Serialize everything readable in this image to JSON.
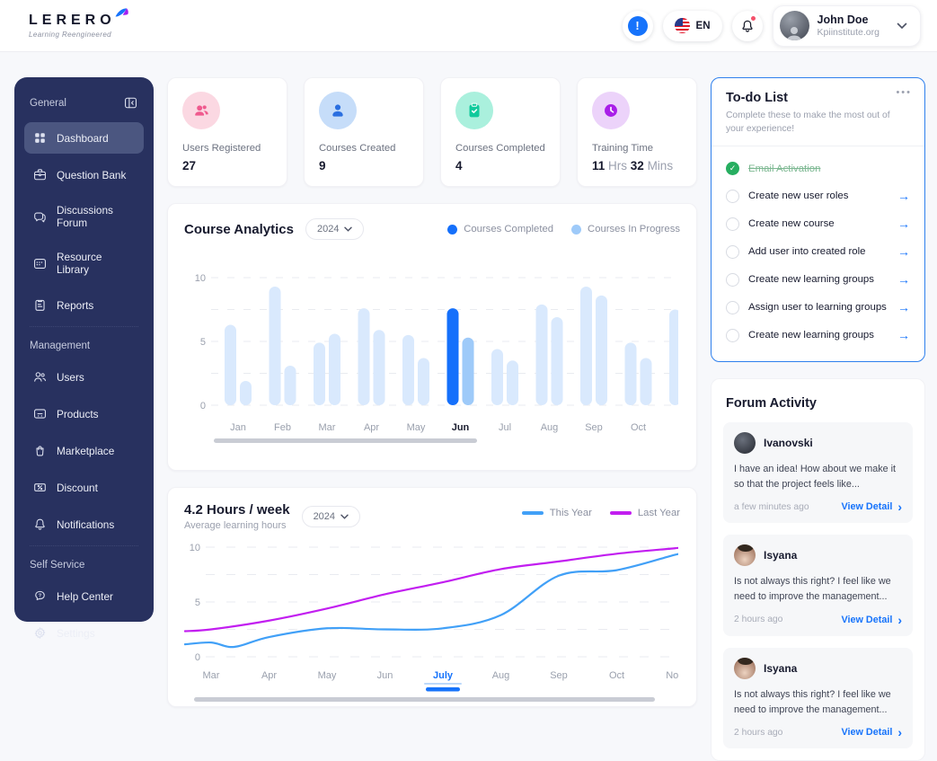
{
  "header": {
    "logo": {
      "text": "LERERO",
      "tagline": "Learning Reengineered"
    },
    "language": "EN",
    "user": {
      "name": "John Doe",
      "org": "Kpiinstitute.org"
    }
  },
  "sidebar": {
    "sections": [
      {
        "label": "General",
        "items": [
          {
            "icon": "dashboard",
            "label": "Dashboard",
            "active": true
          },
          {
            "icon": "question-bank",
            "label": "Question Bank"
          },
          {
            "icon": "discussions-forum",
            "label": "Discussions Forum"
          },
          {
            "icon": "resource-library",
            "label": "Resource Library"
          },
          {
            "icon": "reports",
            "label": "Reports"
          }
        ]
      },
      {
        "label": "Management",
        "items": [
          {
            "icon": "users",
            "label": "Users"
          },
          {
            "icon": "products",
            "label": "Products"
          },
          {
            "icon": "marketplace",
            "label": "Marketplace"
          },
          {
            "icon": "discount",
            "label": "Discount"
          },
          {
            "icon": "notifications",
            "label": "Notifications"
          }
        ]
      },
      {
        "label": "Self Service",
        "items": [
          {
            "icon": "help-center",
            "label": "Help Center"
          },
          {
            "icon": "settings",
            "label": "Settings"
          }
        ]
      }
    ]
  },
  "stats": [
    {
      "icon": "users-group",
      "circle_bg": "#fbd8e2",
      "icon_color": "#ef5a8e",
      "label": "Users Registered",
      "value_parts": [
        {
          "t": "27",
          "b": true
        }
      ]
    },
    {
      "icon": "person",
      "circle_bg": "#c6ddf9",
      "icon_color": "#2b6fe0",
      "label": "Courses Created",
      "value_parts": [
        {
          "t": "9",
          "b": true
        }
      ]
    },
    {
      "icon": "clipboard-check",
      "circle_bg": "#aaf0dd",
      "icon_color": "#10ca9c",
      "label": "Courses Completed",
      "value_parts": [
        {
          "t": "4",
          "b": true
        }
      ]
    },
    {
      "icon": "clock",
      "circle_bg": "#ecd3fa",
      "icon_color": "#a91fe8",
      "label": "Training Time",
      "value_parts": [
        {
          "t": "11",
          "b": true
        },
        {
          "t": " Hrs ",
          "b": false
        },
        {
          "t": "32",
          "b": true
        },
        {
          "t": " Mins",
          "b": false
        }
      ]
    }
  ],
  "todo": {
    "title": "To-do List",
    "menu_label": "•••",
    "subtitle": "Complete these to make the most out of your experience!",
    "items": [
      {
        "label": "Email Activation",
        "done": true
      },
      {
        "label": "Create new user roles",
        "done": false
      },
      {
        "label": "Create new course",
        "done": false
      },
      {
        "label": "Add user into created role",
        "done": false
      },
      {
        "label": "Create new learning groups",
        "done": false
      },
      {
        "label": "Assign user to learning groups",
        "done": false
      },
      {
        "label": "Create new learning groups",
        "done": false
      }
    ]
  },
  "forum": {
    "title": "Forum Activity",
    "posts": [
      {
        "author": "Ivanovski",
        "avatar": "dark",
        "text": "I have an idea! How about we make it so that the project feels like...",
        "time": "a few minutes ago",
        "action": "View Detail"
      },
      {
        "author": "Isyana",
        "avatar": "light",
        "text": "Is not always this right? I feel like we need to improve the management...",
        "time": "2 hours ago",
        "action": "View Detail"
      },
      {
        "author": "Isyana",
        "avatar": "light",
        "text": "Is not always this right? I feel like we need to improve the management...",
        "time": "2 hours ago",
        "action": "View Detail"
      }
    ]
  },
  "chart_data": [
    {
      "type": "bar",
      "title": "Course Analytics",
      "year_filter": "2024",
      "legend": [
        "Courses Completed",
        "Courses In Progress"
      ],
      "categories": [
        "Jan",
        "Feb",
        "Mar",
        "Apr",
        "May",
        "Jun",
        "Jul",
        "Aug",
        "Sep",
        "Oct"
      ],
      "series": [
        {
          "name": "Courses Completed",
          "values": [
            6.3,
            9.3,
            4.9,
            7.6,
            5.5,
            7.6,
            4.4,
            7.9,
            9.3,
            4.9
          ]
        },
        {
          "name": "Courses In Progress",
          "values": [
            1.9,
            3.1,
            5.6,
            5.9,
            3.7,
            5.3,
            3.5,
            6.9,
            8.6,
            3.7
          ]
        }
      ],
      "highlighted_category": "Jun",
      "partial_next_bar": 7.5,
      "ylim": [
        0,
        10
      ],
      "yticks": [
        0,
        5,
        10
      ],
      "grid": "dashed",
      "colors": {
        "highlight": [
          "#1570fb",
          "#9ecaf9"
        ],
        "muted": "#d9e9fd"
      }
    },
    {
      "type": "line",
      "title": "4.2 Hours / week",
      "subtitle": "Average learning hours",
      "year_filter": "2024",
      "x_labels": [
        "Mar",
        "Apr",
        "May",
        "Jun",
        "July",
        "Aug",
        "Sep",
        "Oct",
        "Nov"
      ],
      "highlighted_label": "July",
      "ylim": [
        0,
        10
      ],
      "yticks": [
        0,
        5,
        10
      ],
      "grid": "dashed",
      "legend_position": "top-right",
      "series": [
        {
          "name": "This Year",
          "color": "#41a0f7",
          "points": [
            [
              0,
              1.3
            ],
            [
              0.4,
              0.9
            ],
            [
              1,
              1.8
            ],
            [
              2,
              2.6
            ],
            [
              3,
              2.5
            ],
            [
              4,
              2.6
            ],
            [
              5,
              3.8
            ],
            [
              6,
              7.4
            ],
            [
              7,
              7.9
            ],
            [
              8,
              9.3
            ]
          ]
        },
        {
          "name": "Last Year",
          "color": "#c21ef0",
          "points": [
            [
              0,
              2.5
            ],
            [
              1,
              3.3
            ],
            [
              2,
              4.4
            ],
            [
              3,
              5.7
            ],
            [
              4,
              6.8
            ],
            [
              5,
              8.0
            ],
            [
              6,
              8.7
            ],
            [
              7,
              9.4
            ],
            [
              8,
              9.9
            ]
          ]
        }
      ]
    }
  ]
}
